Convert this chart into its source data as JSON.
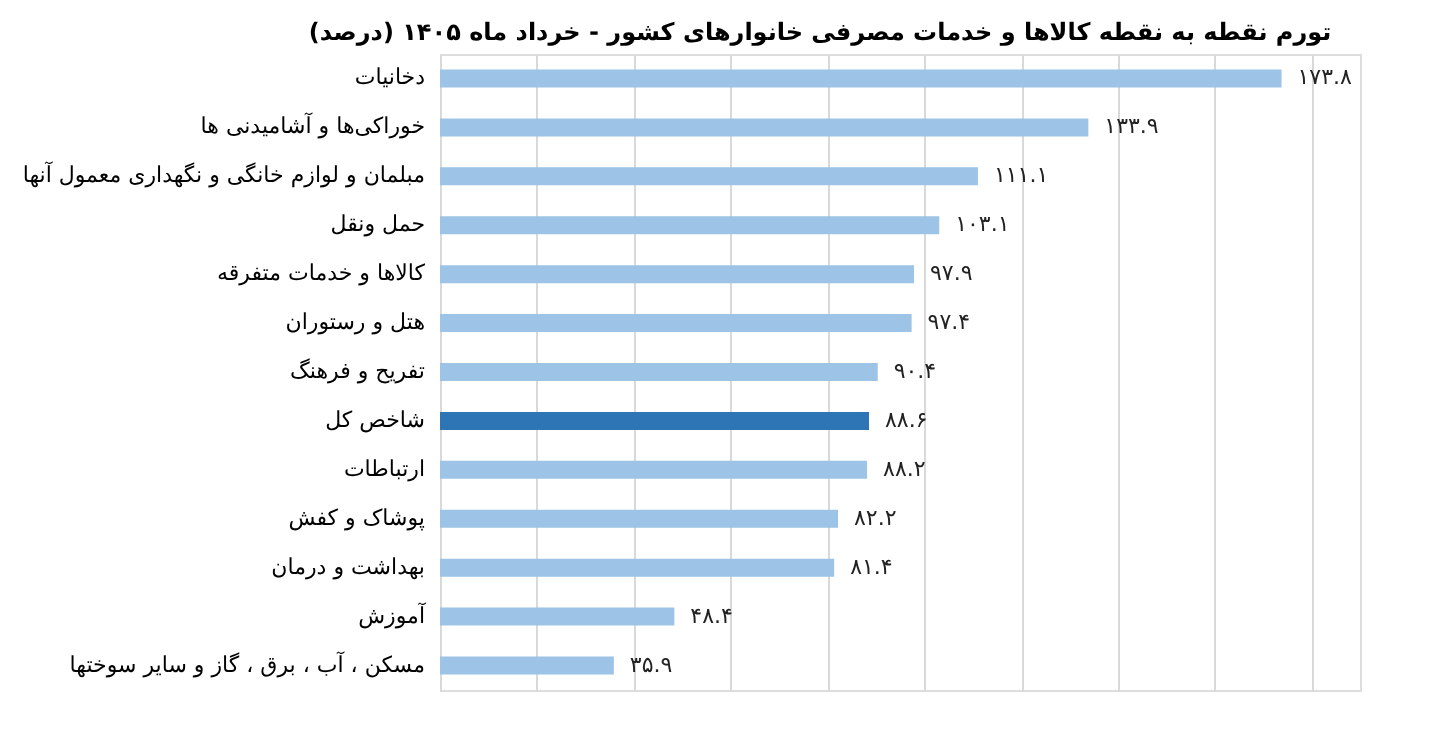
{
  "chart_data": {
    "type": "bar",
    "orientation": "horizontal",
    "title": "تورم نقطه به نقطه کالاها و خدمات مصرفی خانوارهای کشور - خرداد ماه ۱۴۰۵ (درصد)",
    "categories": [
      "دخانیات",
      "خوراکی‌ها و آشامیدنی ها",
      "مبلمان و لوازم خانگی و نگهداری معمول آنها",
      "حمل ونقل",
      "کالاها و خدمات متفرقه",
      "هتل و رستوران",
      "تفریح و فرهنگ",
      "شاخص کل",
      "ارتباطات",
      "پوشاک و کفش",
      "بهداشت و درمان",
      "آموزش",
      "مسکن ، آب ، برق ، گاز و سایر سوختها"
    ],
    "values": [
      173.8,
      133.9,
      111.1,
      103.1,
      97.9,
      97.4,
      90.4,
      88.6,
      88.2,
      82.2,
      81.4,
      48.4,
      35.9
    ],
    "value_labels": [
      "۱۷۳.۸",
      "۱۳۳.۹",
      "۱۱۱.۱",
      "۱۰۳.۱",
      "۹۷.۹",
      "۹۷.۴",
      "۹۰.۴",
      "۸۸.۶",
      "۸۸.۲",
      "۸۲.۲",
      "۸۱.۴",
      "۴۸.۴",
      "۳۵.۹"
    ],
    "colors": [
      "#9dc3e6",
      "#9dc3e6",
      "#9dc3e6",
      "#9dc3e6",
      "#9dc3e6",
      "#9dc3e6",
      "#9dc3e6",
      "#2e75b6",
      "#9dc3e6",
      "#9dc3e6",
      "#9dc3e6",
      "#9dc3e6",
      "#9dc3e6"
    ],
    "xlim": [
      0,
      190
    ],
    "xticks": [
      {
        "value": 0,
        "label": null
      },
      {
        "value": 20,
        "label": null
      },
      {
        "value": 40,
        "label": null
      },
      {
        "value": 60,
        "label": null
      },
      {
        "value": 80,
        "label": null
      },
      {
        "value": 100,
        "label": null
      },
      {
        "value": 120,
        "label": null
      },
      {
        "value": 140,
        "label": null
      },
      {
        "value": 160,
        "label": null
      },
      {
        "value": 180,
        "label": null
      }
    ],
    "grid": "x",
    "tick_labels": "y"
  }
}
